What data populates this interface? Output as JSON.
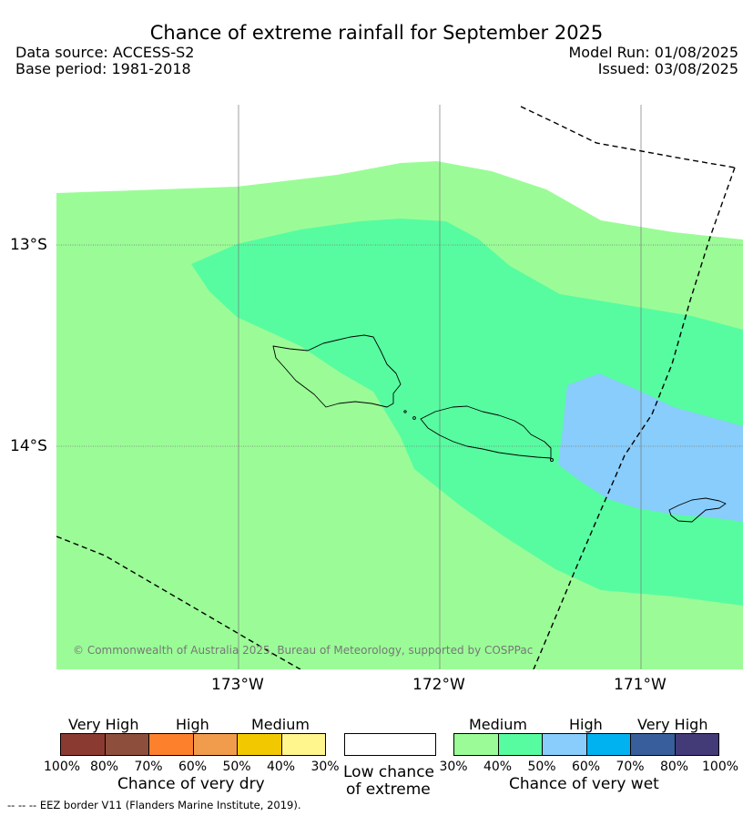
{
  "title": "Chance of extreme rainfall for September 2025",
  "header": {
    "data_source": "Data source: ACCESS-S2",
    "base_period": "Base period: 1981-2018",
    "model_run": "Model Run: 01/08/2025",
    "issued": "Issued: 03/08/2025"
  },
  "map": {
    "lat_labels": [
      "13°S",
      "14°S"
    ],
    "lon_labels": [
      "173°W",
      "172°W",
      "171°W"
    ],
    "copyright": "© Commonwealth of Australia 2025, Bureau of Meteorology, supported by COSPPac",
    "colors": {
      "medium_wet": "#9bfc97",
      "medium_wet_40_50": "#57fca0",
      "high_wet": "#88cdfb",
      "low_chance": "#ffffff"
    },
    "eez_border_style": "dashed"
  },
  "legend": {
    "dry": {
      "categories": [
        "Very High",
        "High",
        "Medium"
      ],
      "colors": [
        "#8b3a32",
        "#8d4e3c",
        "#fd802c",
        "#f19c4c",
        "#f2c900",
        "#fff68e"
      ],
      "ticks": [
        "100%",
        "80%",
        "70%",
        "60%",
        "50%",
        "40%",
        "30%"
      ],
      "title": "Chance of very dry"
    },
    "low": {
      "title_line1": "Low chance",
      "title_line2": "of extreme",
      "color": "#ffffff"
    },
    "wet": {
      "categories": [
        "Medium",
        "High",
        "Very High"
      ],
      "colors": [
        "#9bfc97",
        "#57fca0",
        "#88cdfb",
        "#00b2f0",
        "#385f9c",
        "#433a78"
      ],
      "ticks": [
        "30%",
        "40%",
        "50%",
        "60%",
        "70%",
        "80%",
        "100%"
      ],
      "title": "Chance of very wet"
    }
  },
  "eez_note": "--  --  -- EEZ border V11 (Flanders Marine Institute, 2019)."
}
